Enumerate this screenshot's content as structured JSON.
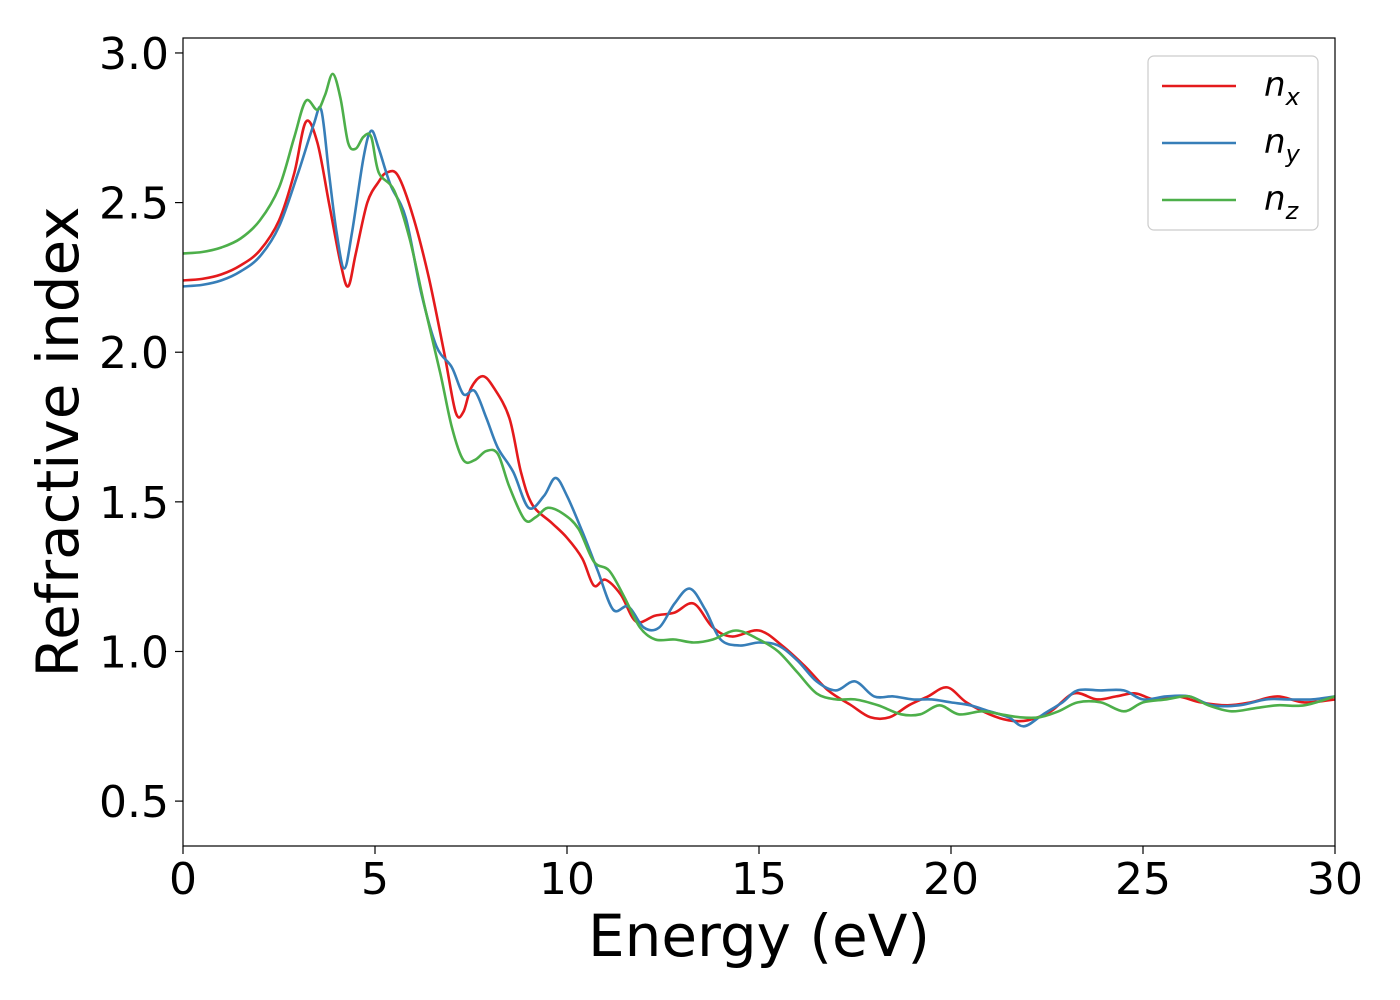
{
  "chart_data": {
    "type": "line",
    "title": "",
    "xlabel": "Energy (eV)",
    "ylabel": "Refractive index",
    "xlim": [
      0,
      30
    ],
    "ylim": [
      0.35,
      3.05
    ],
    "xticks": [
      0,
      5,
      10,
      15,
      20,
      25,
      30
    ],
    "xtick_labels": [
      "0",
      "5",
      "10",
      "15",
      "20",
      "25",
      "30"
    ],
    "yticks": [
      0.5,
      1.0,
      1.5,
      2.0,
      2.5,
      3.0
    ],
    "ytick_labels": [
      "0.5",
      "1.0",
      "1.5",
      "2.0",
      "2.5",
      "3.0"
    ],
    "grid": false,
    "legend_position": "top-right",
    "series": [
      {
        "name": "n",
        "subscript": "x",
        "color": "#e41a1c",
        "points": [
          [
            0,
            2.24
          ],
          [
            0.5,
            2.245
          ],
          [
            1,
            2.26
          ],
          [
            1.5,
            2.29
          ],
          [
            2,
            2.34
          ],
          [
            2.5,
            2.44
          ],
          [
            2.9,
            2.6
          ],
          [
            3.2,
            2.77
          ],
          [
            3.5,
            2.7
          ],
          [
            3.8,
            2.5
          ],
          [
            4.1,
            2.3
          ],
          [
            4.3,
            2.22
          ],
          [
            4.5,
            2.33
          ],
          [
            4.8,
            2.5
          ],
          [
            5.1,
            2.57
          ],
          [
            5.3,
            2.6
          ],
          [
            5.6,
            2.59
          ],
          [
            6.0,
            2.45
          ],
          [
            6.4,
            2.25
          ],
          [
            6.8,
            2.0
          ],
          [
            7.1,
            1.8
          ],
          [
            7.3,
            1.8
          ],
          [
            7.5,
            1.88
          ],
          [
            7.8,
            1.92
          ],
          [
            8.1,
            1.88
          ],
          [
            8.5,
            1.78
          ],
          [
            8.8,
            1.6
          ],
          [
            9.1,
            1.49
          ],
          [
            9.6,
            1.43
          ],
          [
            10.0,
            1.38
          ],
          [
            10.4,
            1.31
          ],
          [
            10.7,
            1.22
          ],
          [
            11.0,
            1.24
          ],
          [
            11.4,
            1.19
          ],
          [
            11.8,
            1.1
          ],
          [
            12.3,
            1.12
          ],
          [
            12.8,
            1.13
          ],
          [
            13.3,
            1.16
          ],
          [
            13.8,
            1.08
          ],
          [
            14.3,
            1.05
          ],
          [
            15.0,
            1.07
          ],
          [
            15.6,
            1.02
          ],
          [
            16.2,
            0.95
          ],
          [
            16.8,
            0.87
          ],
          [
            17.4,
            0.82
          ],
          [
            17.9,
            0.78
          ],
          [
            18.4,
            0.78
          ],
          [
            18.9,
            0.82
          ],
          [
            19.4,
            0.85
          ],
          [
            19.9,
            0.88
          ],
          [
            20.4,
            0.83
          ],
          [
            21.0,
            0.79
          ],
          [
            21.5,
            0.77
          ],
          [
            22.0,
            0.77
          ],
          [
            22.6,
            0.8
          ],
          [
            23.2,
            0.86
          ],
          [
            23.8,
            0.84
          ],
          [
            24.3,
            0.85
          ],
          [
            24.8,
            0.86
          ],
          [
            25.3,
            0.84
          ],
          [
            25.9,
            0.85
          ],
          [
            26.5,
            0.83
          ],
          [
            27.2,
            0.82
          ],
          [
            27.8,
            0.83
          ],
          [
            28.5,
            0.85
          ],
          [
            29.2,
            0.83
          ],
          [
            30,
            0.84
          ]
        ]
      },
      {
        "name": "n",
        "subscript": "y",
        "color": "#377eb8",
        "points": [
          [
            0,
            2.22
          ],
          [
            0.5,
            2.225
          ],
          [
            1,
            2.24
          ],
          [
            1.5,
            2.27
          ],
          [
            2,
            2.32
          ],
          [
            2.5,
            2.42
          ],
          [
            3.0,
            2.6
          ],
          [
            3.4,
            2.76
          ],
          [
            3.6,
            2.81
          ],
          [
            3.8,
            2.6
          ],
          [
            4.0,
            2.4
          ],
          [
            4.2,
            2.28
          ],
          [
            4.4,
            2.4
          ],
          [
            4.7,
            2.65
          ],
          [
            4.9,
            2.74
          ],
          [
            5.1,
            2.68
          ],
          [
            5.4,
            2.56
          ],
          [
            5.8,
            2.45
          ],
          [
            6.2,
            2.2
          ],
          [
            6.6,
            2.02
          ],
          [
            7.0,
            1.95
          ],
          [
            7.3,
            1.86
          ],
          [
            7.6,
            1.87
          ],
          [
            7.9,
            1.78
          ],
          [
            8.2,
            1.68
          ],
          [
            8.6,
            1.6
          ],
          [
            9.0,
            1.48
          ],
          [
            9.4,
            1.52
          ],
          [
            9.7,
            1.58
          ],
          [
            10.0,
            1.52
          ],
          [
            10.4,
            1.4
          ],
          [
            10.8,
            1.27
          ],
          [
            11.2,
            1.14
          ],
          [
            11.6,
            1.15
          ],
          [
            12.0,
            1.08
          ],
          [
            12.4,
            1.08
          ],
          [
            12.8,
            1.16
          ],
          [
            13.2,
            1.21
          ],
          [
            13.6,
            1.14
          ],
          [
            14.0,
            1.04
          ],
          [
            14.5,
            1.02
          ],
          [
            15.0,
            1.03
          ],
          [
            15.5,
            1.02
          ],
          [
            16.0,
            0.97
          ],
          [
            16.5,
            0.9
          ],
          [
            17.0,
            0.87
          ],
          [
            17.5,
            0.9
          ],
          [
            18.0,
            0.85
          ],
          [
            18.5,
            0.85
          ],
          [
            19.0,
            0.84
          ],
          [
            19.5,
            0.84
          ],
          [
            20.0,
            0.83
          ],
          [
            20.5,
            0.82
          ],
          [
            21.0,
            0.8
          ],
          [
            21.5,
            0.78
          ],
          [
            21.9,
            0.75
          ],
          [
            22.4,
            0.79
          ],
          [
            22.9,
            0.83
          ],
          [
            23.3,
            0.87
          ],
          [
            23.9,
            0.87
          ],
          [
            24.5,
            0.87
          ],
          [
            25.0,
            0.84
          ],
          [
            25.6,
            0.85
          ],
          [
            26.2,
            0.85
          ],
          [
            26.8,
            0.82
          ],
          [
            27.5,
            0.82
          ],
          [
            28.2,
            0.84
          ],
          [
            28.8,
            0.84
          ],
          [
            29.4,
            0.84
          ],
          [
            30,
            0.85
          ]
        ]
      },
      {
        "name": "n",
        "subscript": "z",
        "color": "#4daf4a",
        "points": [
          [
            0,
            2.33
          ],
          [
            0.5,
            2.335
          ],
          [
            1,
            2.35
          ],
          [
            1.5,
            2.38
          ],
          [
            2,
            2.44
          ],
          [
            2.5,
            2.55
          ],
          [
            2.9,
            2.72
          ],
          [
            3.2,
            2.84
          ],
          [
            3.5,
            2.81
          ],
          [
            3.7,
            2.86
          ],
          [
            3.9,
            2.93
          ],
          [
            4.1,
            2.85
          ],
          [
            4.3,
            2.7
          ],
          [
            4.5,
            2.68
          ],
          [
            4.7,
            2.72
          ],
          [
            4.9,
            2.72
          ],
          [
            5.1,
            2.6
          ],
          [
            5.5,
            2.54
          ],
          [
            5.9,
            2.38
          ],
          [
            6.3,
            2.15
          ],
          [
            6.7,
            1.93
          ],
          [
            7.0,
            1.75
          ],
          [
            7.3,
            1.64
          ],
          [
            7.6,
            1.64
          ],
          [
            7.9,
            1.67
          ],
          [
            8.2,
            1.66
          ],
          [
            8.5,
            1.55
          ],
          [
            8.9,
            1.44
          ],
          [
            9.2,
            1.45
          ],
          [
            9.5,
            1.48
          ],
          [
            9.9,
            1.46
          ],
          [
            10.3,
            1.41
          ],
          [
            10.7,
            1.3
          ],
          [
            11.1,
            1.27
          ],
          [
            11.5,
            1.18
          ],
          [
            11.9,
            1.08
          ],
          [
            12.3,
            1.04
          ],
          [
            12.8,
            1.04
          ],
          [
            13.3,
            1.03
          ],
          [
            13.8,
            1.04
          ],
          [
            14.4,
            1.07
          ],
          [
            15.0,
            1.04
          ],
          [
            15.5,
            1.0
          ],
          [
            16.0,
            0.93
          ],
          [
            16.5,
            0.86
          ],
          [
            17.0,
            0.84
          ],
          [
            17.5,
            0.84
          ],
          [
            18.1,
            0.82
          ],
          [
            18.7,
            0.79
          ],
          [
            19.2,
            0.79
          ],
          [
            19.7,
            0.82
          ],
          [
            20.2,
            0.79
          ],
          [
            20.8,
            0.8
          ],
          [
            21.3,
            0.79
          ],
          [
            21.8,
            0.78
          ],
          [
            22.3,
            0.78
          ],
          [
            22.8,
            0.8
          ],
          [
            23.3,
            0.83
          ],
          [
            23.9,
            0.83
          ],
          [
            24.5,
            0.8
          ],
          [
            25.0,
            0.83
          ],
          [
            25.6,
            0.84
          ],
          [
            26.2,
            0.85
          ],
          [
            26.7,
            0.82
          ],
          [
            27.3,
            0.8
          ],
          [
            27.9,
            0.81
          ],
          [
            28.5,
            0.82
          ],
          [
            29.2,
            0.82
          ],
          [
            30,
            0.85
          ]
        ]
      }
    ]
  }
}
